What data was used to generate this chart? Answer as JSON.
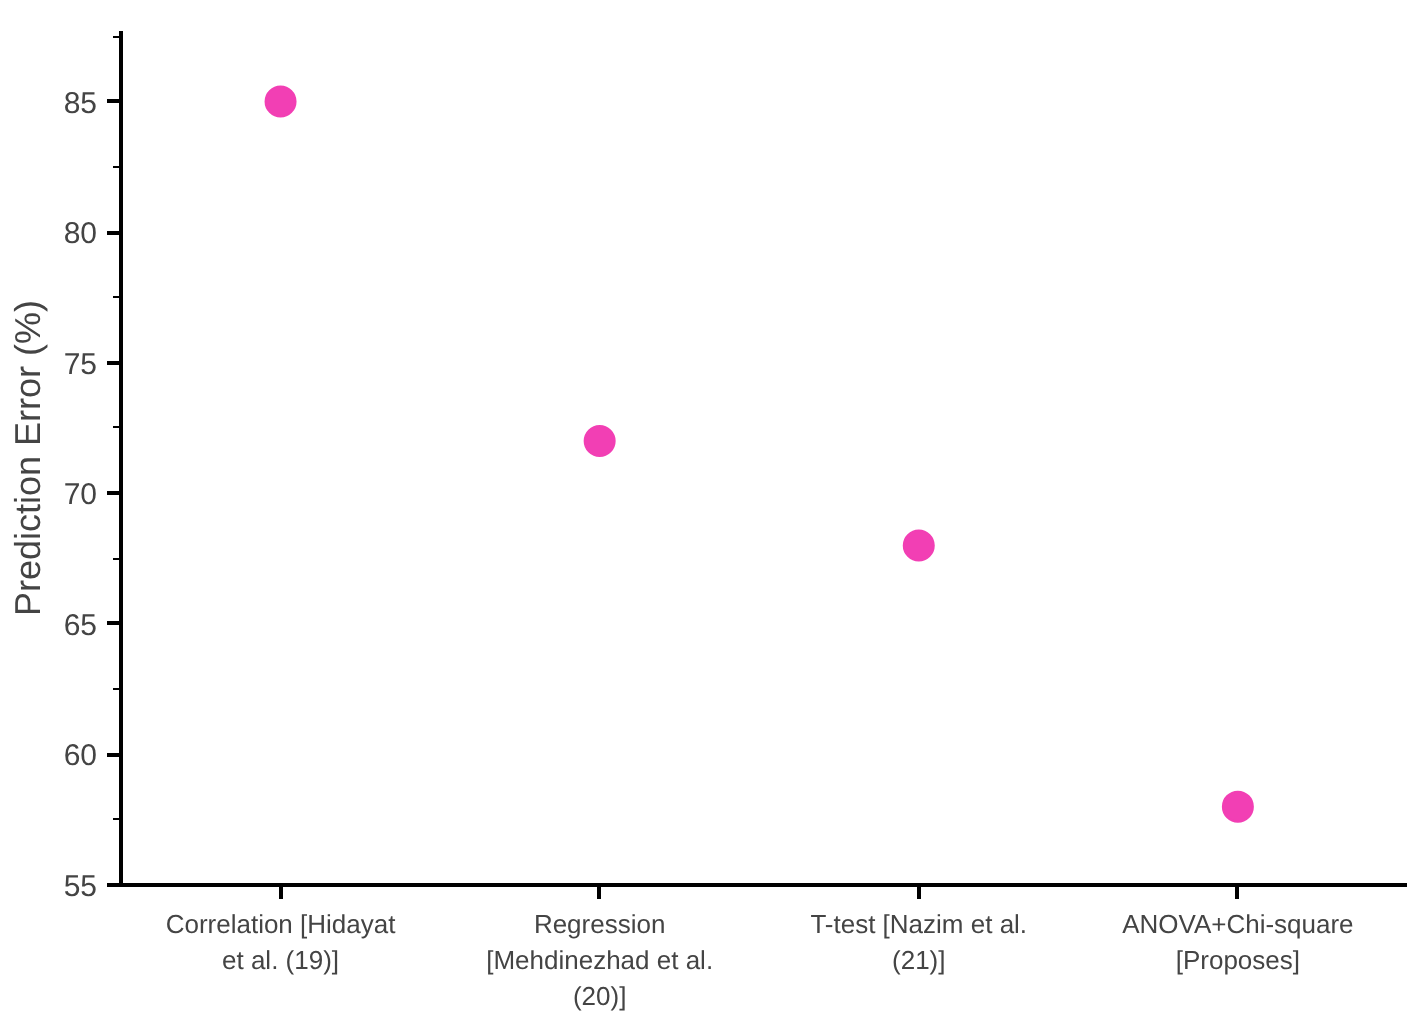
{
  "chart_data": {
    "type": "scatter",
    "ylabel": "Prediction Error (%)",
    "categories": [
      "Correlation [Hidayat\net al. (19)]",
      "Regression\n[Mehdinezhad et al.\n(20)]",
      "T-test [Nazim et al.\n(21)]",
      "ANOVA+Chi-square\n[Proposes]"
    ],
    "values": [
      85,
      72,
      68,
      58
    ],
    "color": "#f23fb4",
    "marker": "circle",
    "ylim": [
      55,
      87.7
    ],
    "yticks": [
      55,
      60,
      65,
      70,
      75,
      80,
      85
    ],
    "grid": false
  }
}
